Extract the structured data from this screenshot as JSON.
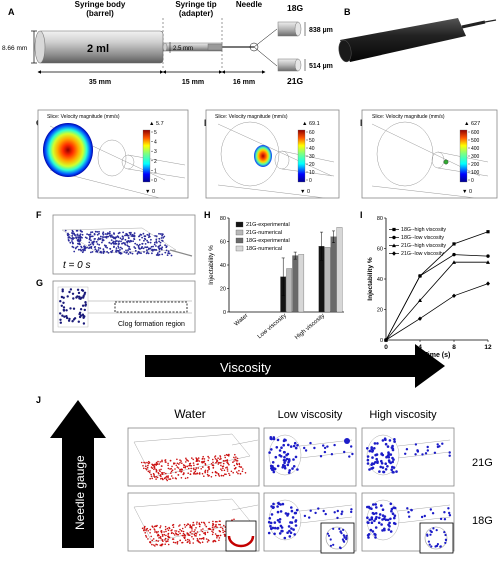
{
  "panels": {
    "a": {
      "letter": "A",
      "barrel_label": "Syringe body",
      "barrel_sub": "(barrel)",
      "tip_label": "Syringe tip",
      "tip_sub": "(adapter)",
      "needle_label": "Needle",
      "volume": "2 ml",
      "height_dim": "8.66 mm",
      "tip_dim": "2.5 mm",
      "len_barrel": "35 mm",
      "len_tip": "15 mm",
      "len_needle": "16 mm",
      "g18": "18G",
      "g18_dim": "838 µm",
      "g21": "21G",
      "g21_dim": "514 µm"
    },
    "b": {
      "letter": "B"
    },
    "c": {
      "letter": "C",
      "slice_label": "Slice: Velocity magnitude (mm/s)",
      "max": "5.7",
      "min": "0",
      "ticks": [
        "5",
        "4",
        "3",
        "2",
        "1",
        "0"
      ]
    },
    "d": {
      "letter": "D",
      "slice_label": "Slice: Velocity magnitude (mm/s)",
      "max": "69.1",
      "min": "0",
      "ticks": [
        "60",
        "50",
        "40",
        "30",
        "20",
        "10",
        "0"
      ]
    },
    "e": {
      "letter": "E",
      "slice_label": "Slice: Velocity magnitude (mm/s)",
      "max": "627",
      "min": "0",
      "ticks": [
        "600",
        "500",
        "400",
        "300",
        "200",
        "100",
        "0"
      ]
    },
    "f": {
      "letter": "F",
      "time_label": "t = 0 s"
    },
    "g": {
      "letter": "G",
      "clog_label": "Clog formation region"
    },
    "h": {
      "letter": "H"
    },
    "i": {
      "letter": "I"
    },
    "j": {
      "letter": "J",
      "viscosity_arrow": "Viscosity",
      "gauge_arrow": "Needle gauge",
      "col_water": "Water",
      "col_low": "Low viscosity",
      "col_high": "High viscosity",
      "row_21g": "21G",
      "row_18g": "18G"
    }
  },
  "chart_data": [
    {
      "type": "bar",
      "panel": "H",
      "ylabel": "Injectability %",
      "ylim": [
        0,
        80
      ],
      "yticks": [
        0,
        20,
        40,
        60,
        80
      ],
      "categories": [
        "Water",
        "Low viscosity",
        "High viscosity"
      ],
      "series": [
        {
          "name": "21G-experimental",
          "color": "#141414",
          "values": [
            null,
            30,
            56
          ],
          "errors": [
            null,
            16,
            12
          ]
        },
        {
          "name": "21G-numerical",
          "color": "#b9b9b9",
          "values": [
            null,
            37,
            55
          ],
          "errors": [
            null,
            0,
            0
          ]
        },
        {
          "name": "18G-experimental",
          "color": "#6a6a6a",
          "values": [
            null,
            48,
            64
          ],
          "errors": [
            null,
            3,
            5
          ]
        },
        {
          "name": "18G-numerical",
          "color": "#d7d7d7",
          "values": [
            null,
            49,
            72
          ],
          "errors": [
            null,
            0,
            0
          ]
        }
      ]
    },
    {
      "type": "line",
      "panel": "I",
      "xlabel": "Time (s)",
      "ylabel": "Injectability %",
      "x": [
        0,
        4,
        8,
        12
      ],
      "xticks": [
        0,
        4,
        8,
        12
      ],
      "yticks": [
        0,
        20,
        40,
        60,
        80
      ],
      "ylim": [
        0,
        80
      ],
      "xlim": [
        0,
        12
      ],
      "series": [
        {
          "name": "18G--high viscosity",
          "marker": "square",
          "values": [
            0,
            42,
            63,
            71
          ]
        },
        {
          "name": "18G--low viscosity",
          "marker": "circle",
          "values": [
            0,
            42,
            56,
            55
          ]
        },
        {
          "name": "21G--high viscosity",
          "marker": "triangle",
          "values": [
            0,
            26,
            51,
            51
          ]
        },
        {
          "name": "21G--low viscosity",
          "marker": "diamond",
          "values": [
            0,
            14,
            29,
            37
          ]
        }
      ]
    }
  ]
}
